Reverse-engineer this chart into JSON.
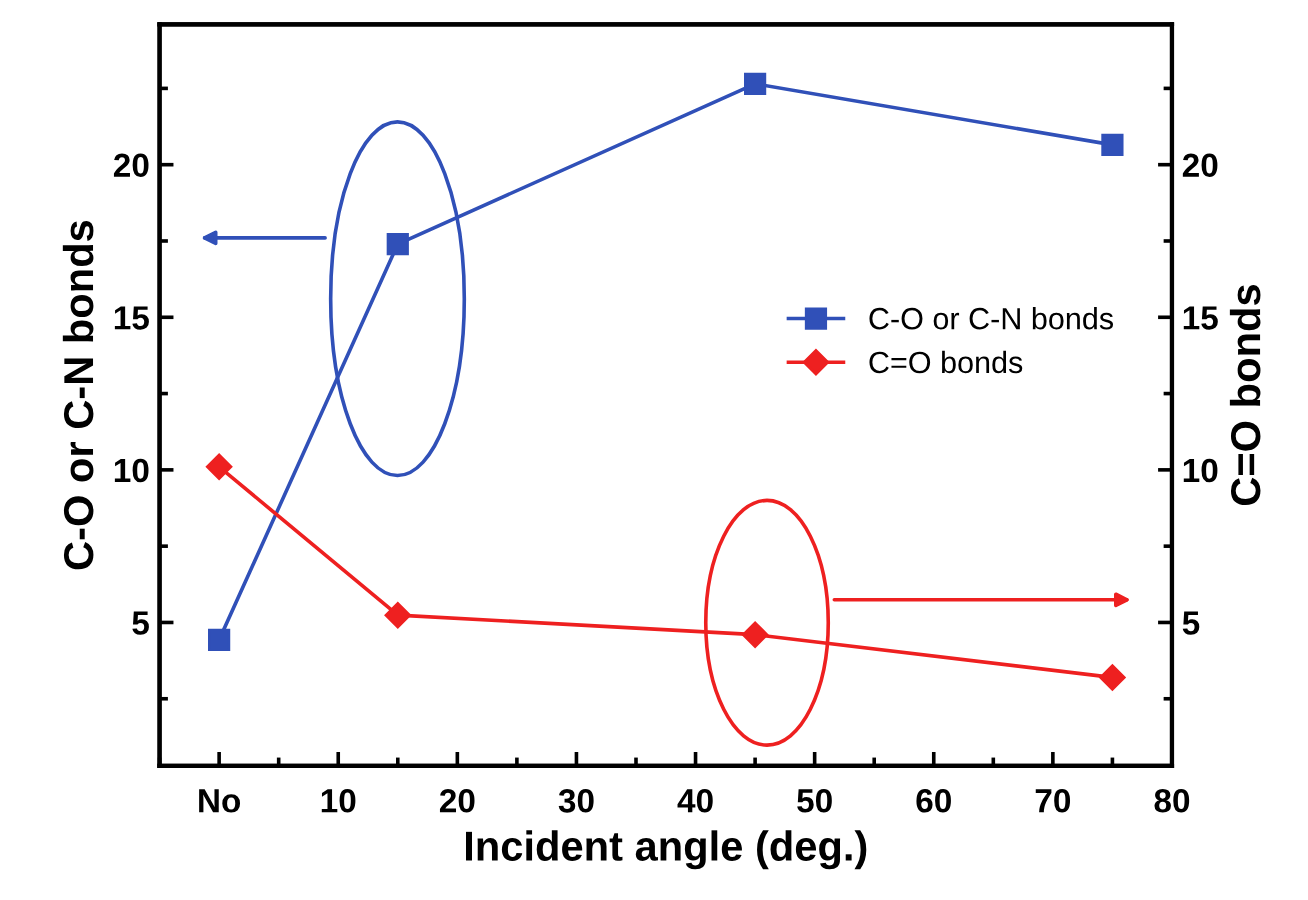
{
  "chart_data": {
    "type": "line",
    "xlabel": "Incident angle (deg.)",
    "ylabel": "C-O or C-N bonds",
    "y2label": "C=O bonds",
    "x": [
      0,
      15,
      45,
      75
    ],
    "series": [
      {
        "name": "C-O or C-N bonds",
        "color": "#3050b8",
        "marker": "square",
        "values": [
          4.43,
          17.4,
          22.65,
          20.65
        ]
      },
      {
        "name": "C=O bonds",
        "color": "#ee2020",
        "marker": "diamond",
        "axis": "y2",
        "values": [
          10.1,
          5.24,
          4.6,
          3.2
        ]
      }
    ],
    "xlim": [
      -5,
      80
    ],
    "xticks": [
      {
        "value": 0,
        "label": "No"
      },
      10,
      20,
      30,
      40,
      50,
      60,
      70,
      80
    ],
    "ylim": [
      0.3,
      24.6
    ],
    "yticks": [
      5,
      10,
      15,
      20
    ],
    "y2lim": [
      0.3,
      24.6
    ],
    "y2ticks": [
      5,
      10,
      15,
      20
    ],
    "legend": "right",
    "grid": false,
    "line_style": "solid"
  }
}
